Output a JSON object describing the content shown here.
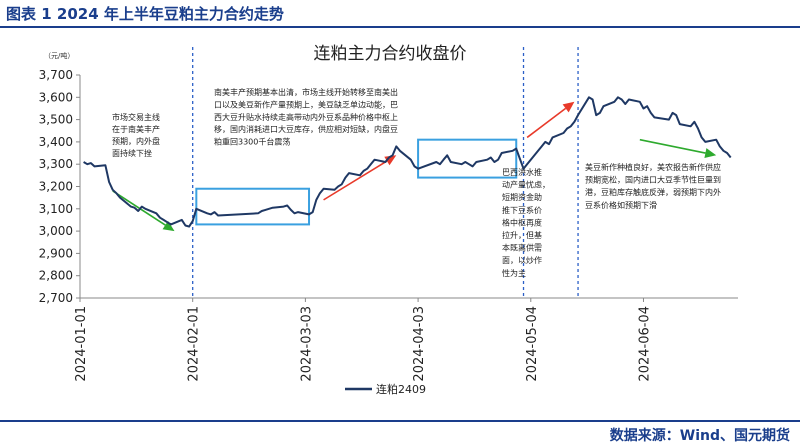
{
  "header": {
    "title": "图表 1 2024 年上半年豆粕主力合约走势"
  },
  "footer": {
    "source": "数据来源：Wind、国元期货"
  },
  "chart_data": {
    "type": "line",
    "title": "连粕主力合约收盘价",
    "unit": "（元/吨）",
    "ylim": [
      2700,
      3700
    ],
    "yticks": [
      "2,700",
      "2,800",
      "2,900",
      "3,000",
      "3,100",
      "3,200",
      "3,300",
      "3,400",
      "3,500",
      "3,600",
      "3,700"
    ],
    "xticks": [
      "2024-01-01",
      "2024-02-01",
      "2024-03-03",
      "2024-04-03",
      "2024-05-04",
      "2024-06-04"
    ],
    "xlim": [
      "2024-01-01",
      "2024-06-30"
    ],
    "grid": false,
    "legend": "bottom",
    "series": [
      {
        "name": "连粕2409",
        "color": "#1f3864",
        "points": [
          [
            "2024-01-02",
            3310
          ],
          [
            "2024-01-03",
            3300
          ],
          [
            "2024-01-04",
            3305
          ],
          [
            "2024-01-05",
            3290
          ],
          [
            "2024-01-08",
            3295
          ],
          [
            "2024-01-09",
            3220
          ],
          [
            "2024-01-10",
            3185
          ],
          [
            "2024-01-11",
            3170
          ],
          [
            "2024-01-12",
            3150
          ],
          [
            "2024-01-15",
            3110
          ],
          [
            "2024-01-16",
            3105
          ],
          [
            "2024-01-17",
            3090
          ],
          [
            "2024-01-18",
            3110
          ],
          [
            "2024-01-19",
            3100
          ],
          [
            "2024-01-22",
            3080
          ],
          [
            "2024-01-23",
            3060
          ],
          [
            "2024-01-24",
            3050
          ],
          [
            "2024-01-25",
            3040
          ],
          [
            "2024-01-26",
            3030
          ],
          [
            "2024-01-29",
            3050
          ],
          [
            "2024-01-30",
            3025
          ],
          [
            "2024-01-31",
            3020
          ],
          [
            "2024-02-01",
            3045
          ],
          [
            "2024-02-02",
            3100
          ],
          [
            "2024-02-05",
            3080
          ],
          [
            "2024-02-06",
            3075
          ],
          [
            "2024-02-07",
            3085
          ],
          [
            "2024-02-08",
            3070
          ],
          [
            "2024-02-19",
            3080
          ],
          [
            "2024-02-20",
            3090
          ],
          [
            "2024-02-21",
            3095
          ],
          [
            "2024-02-22",
            3100
          ],
          [
            "2024-02-23",
            3105
          ],
          [
            "2024-02-26",
            3110
          ],
          [
            "2024-02-27",
            3115
          ],
          [
            "2024-02-28",
            3095
          ],
          [
            "2024-02-29",
            3080
          ],
          [
            "2024-03-01",
            3085
          ],
          [
            "2024-03-04",
            3075
          ],
          [
            "2024-03-05",
            3085
          ],
          [
            "2024-03-06",
            3140
          ],
          [
            "2024-03-07",
            3170
          ],
          [
            "2024-03-08",
            3190
          ],
          [
            "2024-03-11",
            3185
          ],
          [
            "2024-03-12",
            3200
          ],
          [
            "2024-03-13",
            3210
          ],
          [
            "2024-03-14",
            3240
          ],
          [
            "2024-03-15",
            3260
          ],
          [
            "2024-03-18",
            3250
          ],
          [
            "2024-03-19",
            3270
          ],
          [
            "2024-03-20",
            3280
          ],
          [
            "2024-03-21",
            3300
          ],
          [
            "2024-03-22",
            3320
          ],
          [
            "2024-03-25",
            3310
          ],
          [
            "2024-03-26",
            3330
          ],
          [
            "2024-03-27",
            3340
          ],
          [
            "2024-03-28",
            3380
          ],
          [
            "2024-03-29",
            3360
          ],
          [
            "2024-04-01",
            3320
          ],
          [
            "2024-04-02",
            3290
          ],
          [
            "2024-04-03",
            3280
          ],
          [
            "2024-04-08",
            3310
          ],
          [
            "2024-04-09",
            3300
          ],
          [
            "2024-04-10",
            3320
          ],
          [
            "2024-04-11",
            3340
          ],
          [
            "2024-04-12",
            3310
          ],
          [
            "2024-04-15",
            3300
          ],
          [
            "2024-04-16",
            3310
          ],
          [
            "2024-04-17",
            3300
          ],
          [
            "2024-04-18",
            3290
          ],
          [
            "2024-04-19",
            3310
          ],
          [
            "2024-04-22",
            3320
          ],
          [
            "2024-04-23",
            3330
          ],
          [
            "2024-04-24",
            3310
          ],
          [
            "2024-04-25",
            3320
          ],
          [
            "2024-04-26",
            3350
          ],
          [
            "2024-04-29",
            3360
          ],
          [
            "2024-04-30",
            3370
          ],
          [
            "2024-05-02",
            3280
          ],
          [
            "2024-05-03",
            3300
          ],
          [
            "2024-05-06",
            3360
          ],
          [
            "2024-05-07",
            3380
          ],
          [
            "2024-05-08",
            3400
          ],
          [
            "2024-05-09",
            3390
          ],
          [
            "2024-05-10",
            3420
          ],
          [
            "2024-05-13",
            3440
          ],
          [
            "2024-05-14",
            3460
          ],
          [
            "2024-05-15",
            3470
          ],
          [
            "2024-05-16",
            3490
          ],
          [
            "2024-05-17",
            3520
          ],
          [
            "2024-05-20",
            3600
          ],
          [
            "2024-05-21",
            3590
          ],
          [
            "2024-05-22",
            3520
          ],
          [
            "2024-05-23",
            3530
          ],
          [
            "2024-05-24",
            3560
          ],
          [
            "2024-05-27",
            3580
          ],
          [
            "2024-05-28",
            3600
          ],
          [
            "2024-05-29",
            3590
          ],
          [
            "2024-05-30",
            3570
          ],
          [
            "2024-05-31",
            3590
          ],
          [
            "2024-06-03",
            3580
          ],
          [
            "2024-06-04",
            3550
          ],
          [
            "2024-06-05",
            3560
          ],
          [
            "2024-06-06",
            3530
          ],
          [
            "2024-06-07",
            3510
          ],
          [
            "2024-06-11",
            3500
          ],
          [
            "2024-06-12",
            3530
          ],
          [
            "2024-06-13",
            3520
          ],
          [
            "2024-06-14",
            3480
          ],
          [
            "2024-06-17",
            3470
          ],
          [
            "2024-06-18",
            3490
          ],
          [
            "2024-06-19",
            3460
          ],
          [
            "2024-06-20",
            3420
          ],
          [
            "2024-06-21",
            3400
          ],
          [
            "2024-06-24",
            3410
          ],
          [
            "2024-06-25",
            3380
          ],
          [
            "2024-06-26",
            3360
          ],
          [
            "2024-06-27",
            3350
          ],
          [
            "2024-06-28",
            3330
          ]
        ]
      }
    ],
    "vlines": [
      "2024-02-01",
      "2024-05-02",
      "2024-05-17"
    ],
    "boxes": [
      {
        "x": [
          "2024-02-02",
          "2024-03-04"
        ],
        "y": [
          3030,
          3190
        ]
      },
      {
        "x": [
          "2024-04-03",
          "2024-04-30"
        ],
        "y": [
          3240,
          3410
        ]
      }
    ],
    "trend_arrows": [
      {
        "from": [
          "2024-01-10",
          3180
        ],
        "to": [
          "2024-01-27",
          3000
        ],
        "color": "#2eaa2e"
      },
      {
        "from": [
          "2024-03-08",
          3140
        ],
        "to": [
          "2024-03-28",
          3340
        ],
        "color": "#e83a2a"
      },
      {
        "from": [
          "2024-05-03",
          3420
        ],
        "to": [
          "2024-05-16",
          3580
        ],
        "color": "#e83a2a"
      },
      {
        "from": [
          "2024-06-03",
          3410
        ],
        "to": [
          "2024-06-24",
          3340
        ],
        "color": "#2eaa2e"
      }
    ],
    "annotations": [
      {
        "lines": [
          "市场交易主线",
          "在于南美丰产",
          "预期，内外盘",
          "面持续下挫"
        ]
      },
      {
        "lines": [
          "南美丰产预期基本出清，市场主线开始转移至南美出",
          "口以及美豆新作产量预期上，美豆缺乏单边动能，巴",
          "西大豆升贴水持续走高带动内外豆系品种价格中枢上",
          "移，国内消耗进口大豆库存，供应相对短缺，内盘豆",
          "粕重回3300千台震荡"
        ]
      },
      {
        "lines": [
          "巴西洪水推",
          "动产量忧虑，",
          "短期资金助",
          "推下豆系价",
          "格中枢再度",
          "拉升，但基",
          "本既离供需",
          "面，以炒作",
          "性为主"
        ]
      },
      {
        "lines": [
          "美豆新作种植良好，美农报告新作供应",
          "预期宽松，国内进口大豆季节性巨量到",
          "港，豆粕库存触底反弹，弱预期下内外",
          "豆系价格如预期下滑"
        ]
      }
    ]
  }
}
